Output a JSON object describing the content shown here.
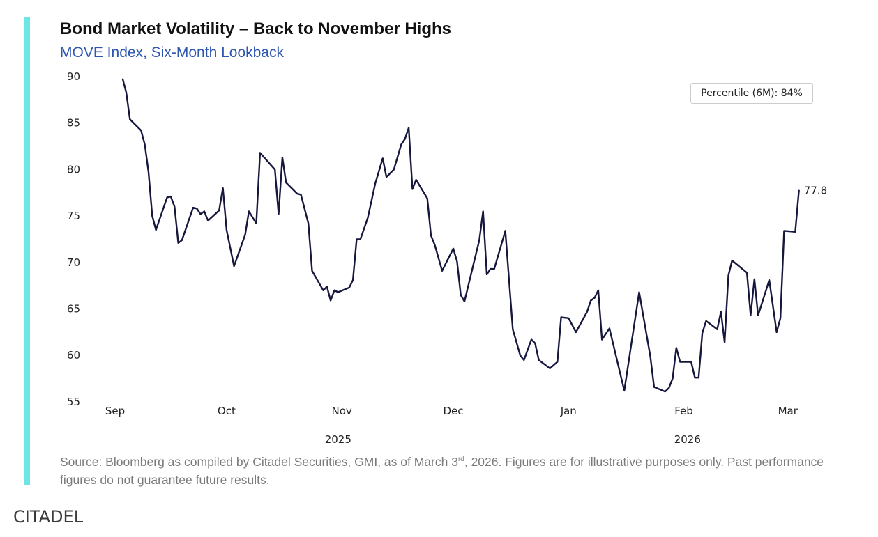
{
  "header": {
    "title": "Bond Market Volatility – Back to November Highs",
    "subtitle": "MOVE Index, Six-Month Lookback"
  },
  "chart_data": {
    "type": "line",
    "title": "Bond Market Volatility – Back to November Highs",
    "subtitle": "MOVE Index, Six-Month Lookback",
    "xlabel": "",
    "ylabel": "",
    "x_unit": "days since Sep 1, 2025",
    "ylim": [
      55,
      90
    ],
    "yticks": [
      55,
      60,
      65,
      70,
      75,
      80,
      85,
      90
    ],
    "xticks": [
      {
        "label": "Sep",
        "day": 0
      },
      {
        "label": "Oct",
        "day": 30
      },
      {
        "label": "Nov",
        "day": 61
      },
      {
        "label": "Dec",
        "day": 91
      },
      {
        "label": "Jan",
        "day": 122
      },
      {
        "label": "Feb",
        "day": 153
      },
      {
        "label": "Mar",
        "day": 181
      }
    ],
    "year_labels": [
      {
        "label": "2025",
        "day": 60
      },
      {
        "label": "2026",
        "day": 154
      }
    ],
    "grid": false,
    "line_color": "#15173d",
    "series": [
      {
        "name": "MOVE Index",
        "x": [
          2,
          3,
          4,
          7,
          8,
          9,
          10,
          11,
          14,
          15,
          16,
          17,
          18,
          21,
          22,
          23,
          24,
          25,
          28,
          29,
          30,
          32,
          35,
          36,
          38,
          39,
          43,
          44,
          45,
          46,
          49,
          50,
          52,
          53,
          56,
          57,
          58,
          59,
          60,
          63,
          64,
          65,
          66,
          68,
          70,
          72,
          73,
          75,
          77,
          78,
          79,
          80,
          81,
          84,
          85,
          86,
          88,
          91,
          92,
          93,
          94,
          98,
          99,
          100,
          101,
          102,
          105,
          107,
          109,
          110,
          112,
          113,
          114,
          117,
          119,
          120,
          122,
          124,
          127,
          128,
          129,
          130,
          131,
          133,
          137,
          141,
          144,
          145,
          148,
          149,
          150,
          151,
          152,
          155,
          156,
          157,
          158,
          159,
          162,
          163,
          164,
          165,
          166,
          170,
          171,
          172,
          173,
          176,
          178,
          179,
          180,
          183,
          184
        ],
        "values": [
          89.8,
          88.3,
          85.4,
          84.2,
          82.7,
          79.7,
          75.0,
          73.5,
          77.0,
          77.1,
          76.0,
          72.1,
          72.4,
          75.9,
          75.8,
          75.2,
          75.5,
          74.5,
          75.6,
          78.0,
          73.5,
          69.6,
          73.0,
          75.5,
          74.2,
          81.8,
          80.0,
          75.2,
          81.3,
          78.6,
          77.4,
          77.3,
          74.2,
          69.1,
          67.0,
          67.4,
          65.9,
          67.0,
          66.8,
          67.3,
          68.1,
          72.5,
          72.5,
          74.8,
          78.5,
          81.2,
          79.2,
          80.0,
          82.7,
          83.3,
          84.5,
          77.9,
          78.9,
          76.9,
          72.9,
          71.9,
          69.1,
          71.5,
          70.1,
          66.5,
          65.8,
          72.4,
          75.5,
          68.7,
          69.3,
          69.3,
          73.4,
          62.8,
          60.0,
          59.5,
          61.7,
          61.3,
          59.5,
          58.6,
          59.3,
          64.1,
          64.0,
          62.5,
          64.7,
          65.9,
          66.2,
          67.0,
          61.7,
          62.9,
          56.2,
          66.8,
          59.9,
          56.6,
          56.1,
          56.5,
          57.5,
          60.8,
          59.3,
          59.3,
          57.6,
          57.6,
          62.4,
          63.7,
          62.8,
          64.7,
          61.4,
          68.6,
          70.2,
          68.9,
          64.3,
          68.2,
          64.3,
          68.1,
          62.5,
          64.0,
          73.4,
          73.3,
          77.8
        ]
      }
    ],
    "end_label": "77.8",
    "legend": {
      "text": "Percentile (6M): 84%",
      "placement": "top-right"
    }
  },
  "footer": {
    "source_pre": "Source: Bloomberg as compiled by Citadel Securities, GMI, as of March 3",
    "source_sup": "rd",
    "source_post": ", 2026. Figures are for illustrative purposes only. Past performance figures do not guarantee future results.",
    "brand": "CITADEL"
  }
}
